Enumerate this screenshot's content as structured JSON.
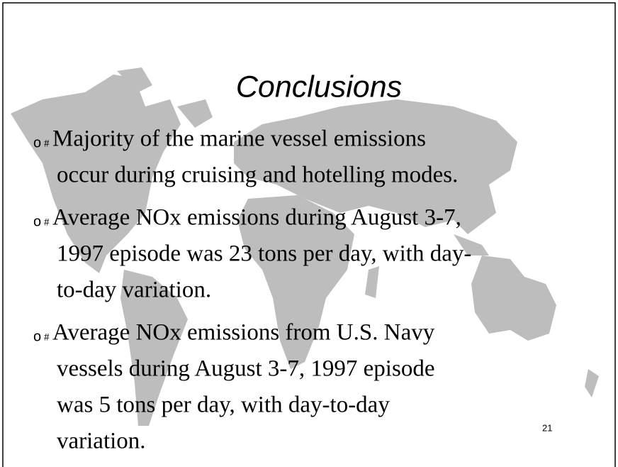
{
  "slide": {
    "title": "Conclusions",
    "bullets": [
      {
        "marker": "o",
        "symbol": "#",
        "lines": [
          "Majority of the marine vessel emissions",
          "occur during cruising and hotelling modes."
        ]
      },
      {
        "marker": "o",
        "symbol": "#",
        "lines": [
          "Average NOx emissions during August 3-7,",
          "1997 episode was 23 tons per day, with day-",
          "to-day variation."
        ]
      },
      {
        "marker": "o",
        "symbol": "#",
        "lines": [
          "Average NOx emissions from U.S. Navy",
          "vessels during August 3-7, 1997 episode",
          "was 5 tons per day, with day-to-day",
          "variation."
        ]
      }
    ],
    "page_number": "21"
  }
}
